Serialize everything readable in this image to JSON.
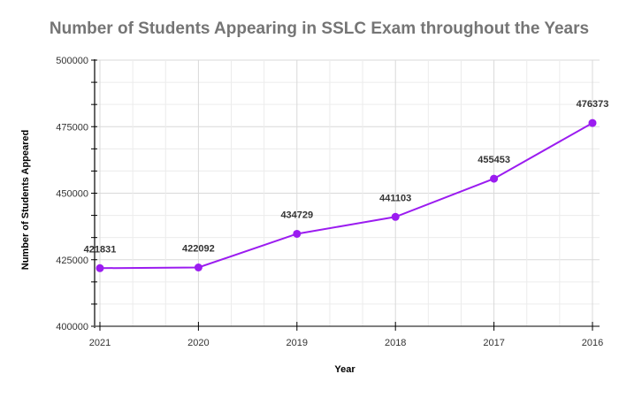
{
  "chart_data": {
    "type": "line",
    "title": "Number of Students Appearing in SSLC Exam throughout the Years",
    "xlabel": "Year",
    "ylabel": "Number of Students Appeared",
    "categories": [
      "2021",
      "2020",
      "2019",
      "2018",
      "2017",
      "2016"
    ],
    "series": [
      {
        "name": "Number of Students Appeared",
        "values": [
          421831,
          422092,
          434729,
          441103,
          455453,
          476373
        ],
        "color": "#9b1cf0"
      }
    ],
    "ylim": [
      400000,
      500000
    ],
    "yticks": [
      "400000",
      "425000",
      "450000",
      "475000",
      "500000"
    ],
    "data_labels": [
      "421831",
      "422092",
      "434729",
      "441103",
      "455453",
      "476373"
    ],
    "grid": true,
    "legend": "none"
  }
}
